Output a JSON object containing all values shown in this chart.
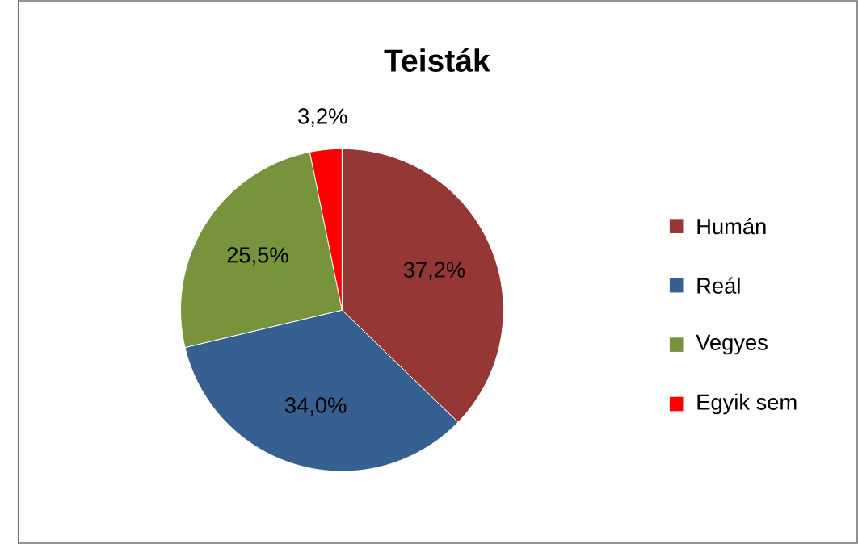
{
  "chart_data": {
    "type": "pie",
    "title": "Teisták",
    "categories": [
      "Humán",
      "Reál",
      "Vegyes",
      "Egyik sem"
    ],
    "values": [
      37.2,
      34.0,
      25.5,
      3.2
    ],
    "value_labels": [
      "37,2%",
      "34,0%",
      "25,5%",
      "3,2%"
    ],
    "colors": [
      "#953735",
      "#376092",
      "#77933c",
      "#ff0000"
    ],
    "legend": "right"
  }
}
